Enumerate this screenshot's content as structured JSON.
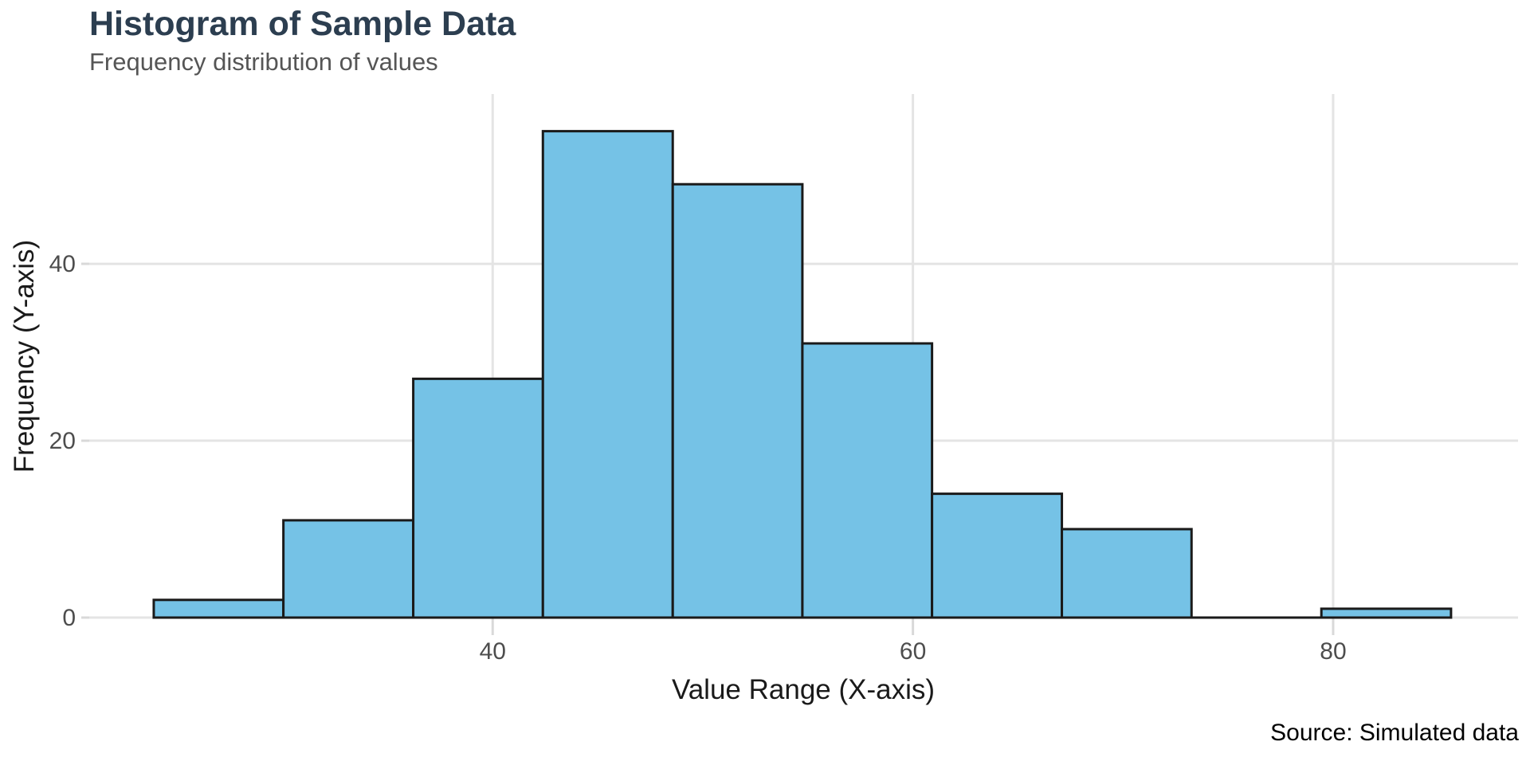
{
  "chart_data": {
    "type": "bar",
    "chart_kind": "histogram",
    "title": "Histogram of Sample Data",
    "subtitle": "Frequency distribution of values",
    "xlabel": "Value Range (X-axis)",
    "ylabel": "Frequency (Y-axis)",
    "source": "Source: Simulated data",
    "bin_edges": [
      23.87,
      30.04,
      36.22,
      42.39,
      48.57,
      54.74,
      60.91,
      67.09,
      73.26,
      79.44,
      85.61
    ],
    "counts": [
      2,
      11,
      27,
      55,
      49,
      31,
      14,
      10,
      0,
      1
    ],
    "total_n": 200,
    "xlim": [
      20.8,
      88.8
    ],
    "ylim": [
      0,
      59.2
    ],
    "x_ticks": [
      40,
      60,
      80
    ],
    "y_ticks": [
      0,
      20,
      40
    ],
    "grid": "major-only",
    "legend": "none",
    "colors": {
      "background": "#FFFFFF",
      "bar_fill": "#75C2E6",
      "bar_stroke": "#1A1A1A",
      "grid": "#E4E4E4",
      "tick_mark": "#D9D9D9",
      "tick_label": "#4D4D4D",
      "title": "#2C3E50",
      "subtitle": "#555555",
      "axis_title": "#1A1A1A",
      "source_text": "#000000"
    }
  }
}
